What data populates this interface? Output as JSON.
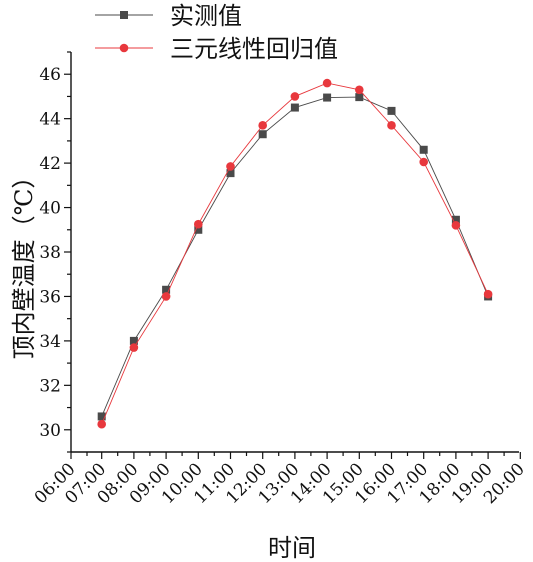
{
  "chart_data": {
    "type": "line",
    "xlabel": "时间",
    "ylabel": "顶内壁温度（℃）",
    "x_ticks": [
      "06:00",
      "07:00",
      "08:00",
      "09:00",
      "10:00",
      "11:00",
      "12:00",
      "13:00",
      "14:00",
      "15:00",
      "16:00",
      "17:00",
      "18:00",
      "19:00",
      "20:00"
    ],
    "y_ticks": [
      "30",
      "32",
      "34",
      "36",
      "38",
      "40",
      "42",
      "44",
      "46"
    ],
    "ylim": [
      29,
      47
    ],
    "x": [
      "07:00",
      "08:00",
      "09:00",
      "10:00",
      "11:00",
      "12:00",
      "13:00",
      "14:00",
      "15:00",
      "16:00",
      "17:00",
      "18:00",
      "19:00"
    ],
    "series": [
      {
        "name": "实测值",
        "color": "#4a4a4a",
        "marker": "square",
        "values": [
          30.6,
          34.0,
          36.3,
          39.0,
          41.55,
          43.3,
          44.5,
          44.95,
          44.97,
          44.35,
          42.6,
          39.45,
          36.0
        ]
      },
      {
        "name": "三元线性回归值",
        "color": "#e8383d",
        "marker": "circle",
        "values": [
          30.25,
          33.7,
          36.0,
          39.25,
          41.85,
          43.7,
          45.0,
          45.6,
          45.3,
          43.7,
          42.05,
          39.2,
          36.1
        ]
      }
    ],
    "legend_position": "top-left",
    "grid": false
  }
}
